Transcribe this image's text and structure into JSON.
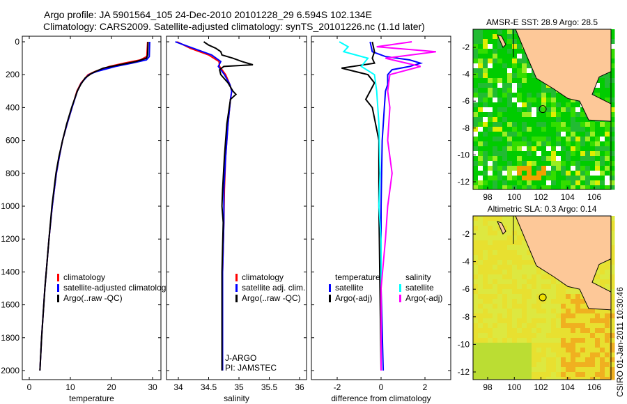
{
  "title": {
    "line1": "Argo profile: JA 5901564_105 24-Dec-2010 20101228_29 6.594S 102.134E",
    "line2": "Climatology: CARS2009. Satellite-adjusted climatology: synTS_20101226.nc (1.1d later)"
  },
  "footer": "CSIRO 01-Jan-2011 10:30:46",
  "colors": {
    "climatology": "#ff0000",
    "satellite": "#0000ff",
    "argo": "#000000",
    "sal_sat": "#00ffff",
    "sal_argo": "#ff00ff",
    "land": "#fdc898"
  },
  "chart_data": [
    {
      "type": "line",
      "xlabel": "temperature",
      "ylabel": "",
      "xlim": [
        -2,
        31
      ],
      "ylim": [
        0,
        2050
      ],
      "xticks": [
        "0",
        "10",
        "20",
        "30"
      ],
      "yticks": [
        "0",
        "200",
        "400",
        "600",
        "800",
        "1000",
        "1200",
        "1400",
        "1600",
        "1800",
        "2000"
      ],
      "legend": [
        "climatology",
        "satellite-adjusted climatology",
        "Argo(..raw -QC)"
      ],
      "series": [
        {
          "name": "climatology",
          "depth": [
            0,
            90,
            110,
            130,
            150,
            180,
            200,
            250,
            300,
            400,
            500,
            600,
            700,
            800,
            1000,
            1200,
            1500,
            1800,
            2000
          ],
          "values": [
            28.8,
            28.6,
            27,
            23,
            19.5,
            16,
            14.3,
            12.6,
            11.6,
            10.4,
            9.2,
            8.1,
            7.3,
            6.6,
            5.6,
            4.8,
            3.8,
            3,
            2.6
          ]
        },
        {
          "name": "satellite-adjusted climatology",
          "depth": [
            0,
            90,
            110,
            130,
            150,
            180,
            200,
            250,
            300,
            400,
            500,
            600,
            700,
            800,
            1000,
            1200,
            1500,
            1800,
            2000
          ],
          "values": [
            29.3,
            29.2,
            28.5,
            25,
            21,
            16.5,
            14.5,
            12.7,
            11.7,
            10.4,
            9.2,
            8.1,
            7.3,
            6.6,
            5.6,
            4.8,
            3.8,
            3,
            2.6
          ]
        },
        {
          "name": "Argo(..raw -QC)",
          "depth": [
            0,
            80,
            100,
            120,
            140,
            160,
            190,
            220,
            260,
            300,
            400,
            500,
            600,
            700,
            800,
            1000,
            1200,
            1500,
            1800,
            2000
          ],
          "values": [
            28.9,
            28.8,
            28.5,
            26,
            22,
            18,
            15.3,
            13.6,
            12.5,
            11.7,
            10.3,
            9.1,
            8.1,
            7.2,
            6.5,
            5.5,
            4.8,
            3.8,
            3,
            2.6
          ]
        }
      ]
    },
    {
      "type": "line",
      "xlabel": "salinity",
      "xlim": [
        33.8,
        36.1
      ],
      "ylim": [
        0,
        2050
      ],
      "xticks": [
        "34",
        "34.5",
        "35",
        "35.5",
        "36"
      ],
      "legend": [
        "climatology",
        "satellite adj. clim.",
        "Argo(..raw -QC)"
      ],
      "annotation": [
        "J-ARGO",
        "PI: JAMSTEC"
      ],
      "series": [
        {
          "name": "climatology",
          "depth": [
            0,
            40,
            80,
            120,
            150,
            200,
            260,
            300,
            350,
            500,
            700,
            900,
            1100,
            1400,
            1700,
            2000
          ],
          "values": [
            33.98,
            34.2,
            34.5,
            34.67,
            34.68,
            34.78,
            34.85,
            34.88,
            34.86,
            34.82,
            34.78,
            34.76,
            34.75,
            34.73,
            34.73,
            34.73
          ]
        },
        {
          "name": "satellite adj. clim.",
          "depth": [
            0,
            40,
            80,
            120,
            150,
            200,
            260,
            300,
            350,
            500,
            700,
            900,
            1100,
            1400,
            1700,
            2000
          ],
          "values": [
            33.95,
            34.25,
            34.55,
            34.7,
            34.66,
            34.76,
            34.85,
            34.88,
            34.86,
            34.82,
            34.78,
            34.75,
            34.75,
            34.73,
            34.73,
            34.73
          ]
        },
        {
          "name": "Argo(..raw -QC)",
          "depth": [
            0,
            20,
            40,
            60,
            80,
            100,
            120,
            140,
            150,
            170,
            200,
            250,
            300,
            320,
            350,
            500,
            700,
            900,
            1000,
            1100,
            1400,
            1700,
            2000
          ],
          "values": [
            34.42,
            34.5,
            34.62,
            34.7,
            34.72,
            34.9,
            35.05,
            35.23,
            34.75,
            34.68,
            34.7,
            34.82,
            34.9,
            34.95,
            34.86,
            34.8,
            34.76,
            34.73,
            34.72,
            34.74,
            34.72,
            34.72,
            34.72
          ]
        }
      ]
    },
    {
      "type": "line",
      "xlabel": "difference from climatology",
      "xlim": [
        -3.1,
        3.1
      ],
      "ylim": [
        0,
        2050
      ],
      "xticks": [
        "-2",
        "0",
        "2"
      ],
      "legend": {
        "temperature_title": "temperature",
        "salinity_title": "salinity",
        "items": [
          "satellite",
          "Argo(-adj)",
          "satellite",
          "Argo(-adj)"
        ]
      },
      "series": [
        {
          "name": "temperature satellite",
          "depth": [
            0,
            60,
            90,
            110,
            130,
            150,
            170,
            200,
            260,
            300,
            400,
            600,
            1000,
            1500,
            2000
          ],
          "values": [
            -0.5,
            -0.4,
            0.2,
            1.3,
            1.8,
            1.3,
            0.5,
            0.3,
            0.3,
            0.2,
            0.15,
            0.05,
            0,
            0,
            0.1
          ]
        },
        {
          "name": "temperature Argo(-adj)",
          "depth": [
            0,
            60,
            100,
            130,
            160,
            200,
            250,
            300,
            350,
            400,
            600,
            1000,
            1500,
            2000
          ],
          "values": [
            -0.4,
            -0.3,
            -0.4,
            -0.3,
            -1.8,
            -0.6,
            -0.3,
            -0.5,
            -0.7,
            -0.4,
            -0.1,
            -0.1,
            -0.05,
            0
          ]
        },
        {
          "name": "salinity satellite",
          "depth": [
            0,
            30,
            60,
            100,
            150,
            200,
            300,
            500,
            800,
            1000,
            1200,
            1500,
            2000
          ],
          "values": [
            -1.9,
            -1.5,
            -1.7,
            -0.6,
            -0.9,
            -0.3,
            -0.2,
            -0.1,
            -0.05,
            -0.1,
            0,
            0,
            0
          ]
        },
        {
          "name": "salinity Argo(-adj)",
          "depth": [
            0,
            30,
            60,
            100,
            150,
            200,
            300,
            400,
            600,
            800,
            1000,
            1200,
            1500,
            2000
          ],
          "values": [
            1.4,
            -0.2,
            2.5,
            0.2,
            1.8,
            0.4,
            0.3,
            0.4,
            0.3,
            0.5,
            0.3,
            0.2,
            0,
            0
          ]
        }
      ]
    },
    {
      "type": "heatmap",
      "title": "AMSR-E SST: 28.9 Argo: 28.5",
      "xticks": [
        "98",
        "100",
        "102",
        "104",
        "106"
      ],
      "yticks": [
        "-2",
        "-4",
        "-6",
        "-8",
        "-10",
        "-12"
      ]
    },
    {
      "type": "heatmap",
      "title": "Altimetric SLA: 0.3 Argo: 0.14",
      "xticks": [
        "98",
        "100",
        "102",
        "104",
        "106"
      ],
      "yticks": [
        "-2",
        "-4",
        "-6",
        "-8",
        "-10",
        "-12"
      ]
    }
  ]
}
